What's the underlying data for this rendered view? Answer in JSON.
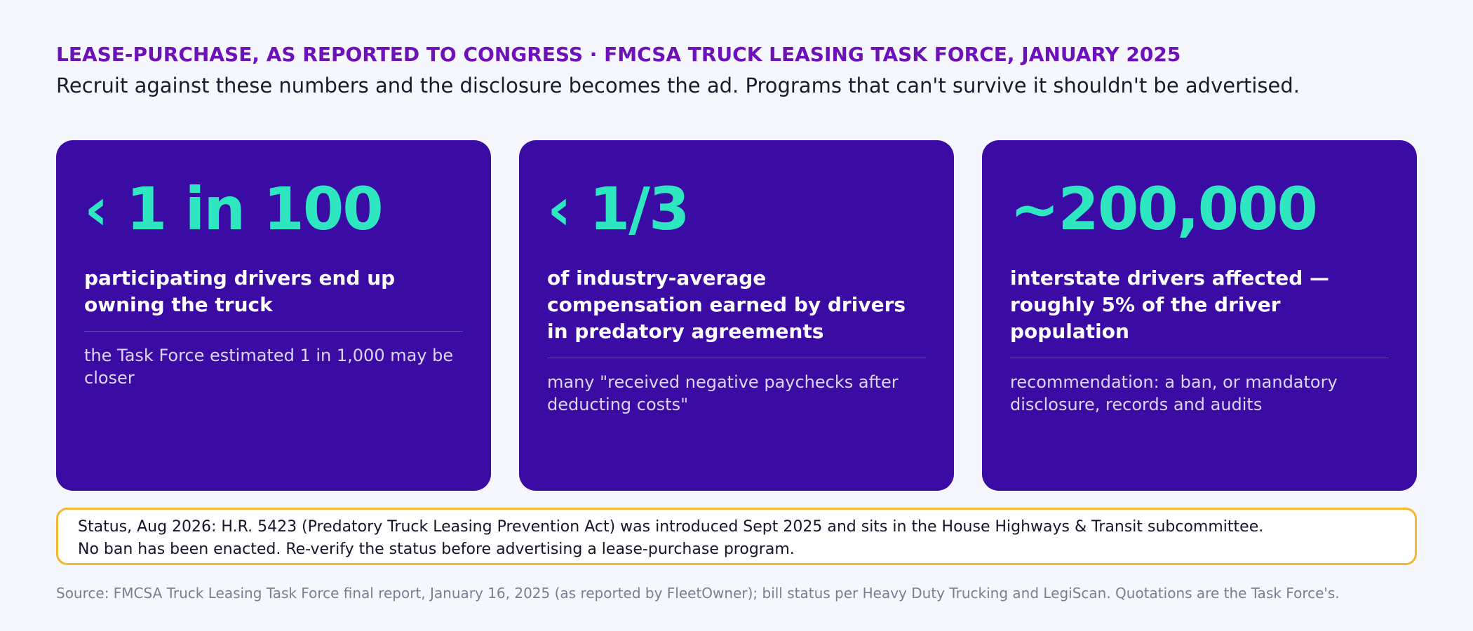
{
  "header": {
    "kicker": "LEASE-PURCHASE, AS REPORTED TO CONGRESS · FMCSA TRUCK LEASING TASK FORCE, JANUARY 2025",
    "subtitle": "Recruit against these numbers and the disclosure becomes the ad. Programs that can't survive it shouldn't be advertised."
  },
  "cards": [
    {
      "stat": "‹ 1 in 100",
      "headline": "participating drivers end up owning the truck",
      "note": "the Task Force estimated 1 in 1,000 may be closer"
    },
    {
      "stat": "‹ 1/3",
      "headline": "of industry-average compensation earned by drivers in predatory agreements",
      "note": "many \"received negative paychecks after deducting costs\""
    },
    {
      "stat": "~200,000",
      "headline": "interstate drivers affected — roughly 5% of the driver population",
      "note": "recommendation: a ban, or mandatory disclosure, records and audits"
    }
  ],
  "status": {
    "line1": "Status, Aug 2026: H.R. 5423 (Predatory Truck Leasing Prevention Act) was introduced Sept 2025 and sits in the House Highways & Transit subcommittee.",
    "line2": "No ban has been enacted. Re-verify the status before advertising a lease-purchase program."
  },
  "source": "Source: FMCSA Truck Leasing Task Force final report, January 16, 2025 (as reported by FleetOwner); bill status per Heavy Duty Trucking and LegiScan. Quotations are the Task Force's.",
  "colors": {
    "background": "#f5f7fd",
    "kicker": "#6d12b8",
    "card": "#3a0ca3",
    "stat": "#2ee6c0",
    "status_border": "#f4b731"
  }
}
